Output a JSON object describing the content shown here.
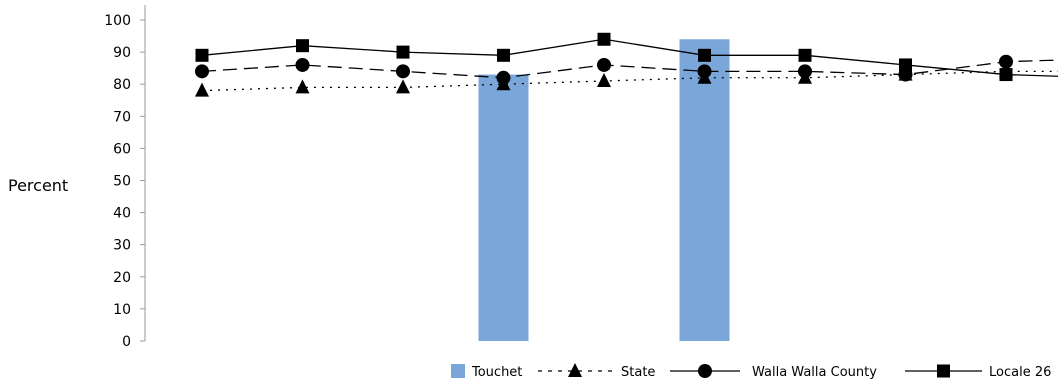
{
  "chart_data": {
    "type": "bar",
    "ylabel": "Percent",
    "ylim": [
      0,
      100
    ],
    "yticks": [
      "0",
      "10",
      "20",
      "30",
      "40",
      "50",
      "60",
      "70",
      "80",
      "90",
      "100"
    ],
    "x": [
      1,
      2,
      3,
      4,
      5,
      6,
      7,
      8,
      9,
      10
    ],
    "grid": false,
    "legend_position": "bottom-right",
    "bar_series": {
      "name": "Touchet",
      "color": "#7ba6d9",
      "values": [
        null,
        null,
        null,
        83,
        null,
        94,
        null,
        null,
        null,
        null
      ]
    },
    "line_series": [
      {
        "name": "State",
        "style": "dotted",
        "marker": "triangle",
        "values": [
          78,
          79,
          79,
          80,
          81,
          82,
          82,
          83,
          84,
          84
        ]
      },
      {
        "name": "Walla Walla County",
        "style": "dashed",
        "marker": "circle",
        "values": [
          84,
          86,
          84,
          82,
          86,
          84,
          84,
          83,
          87,
          88
        ]
      },
      {
        "name": "Locale 26",
        "style": "solid",
        "marker": "square",
        "values": [
          89,
          92,
          90,
          89,
          94,
          89,
          89,
          86,
          83,
          82
        ]
      }
    ]
  }
}
